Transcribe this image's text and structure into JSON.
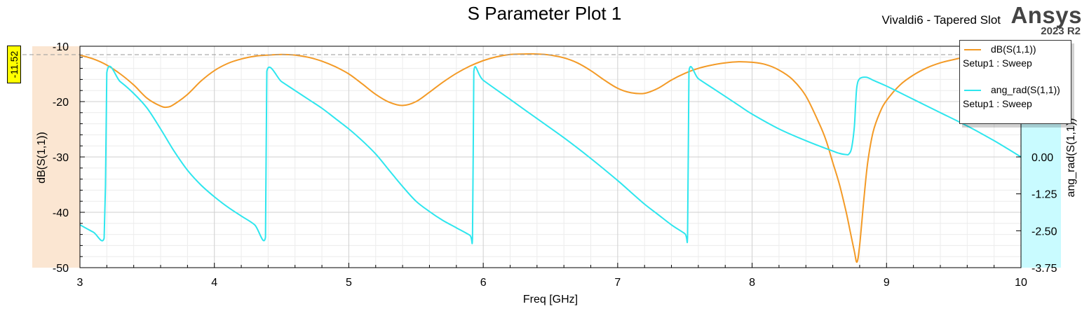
{
  "plot_title": "S Parameter Plot 1",
  "project_name": "Vivaldi6 - Tapered Slot",
  "brand": {
    "name": "Ansys",
    "version": "2023 R2"
  },
  "marker": {
    "value_label": "-11.52",
    "value": -11.52
  },
  "colors": {
    "dB_trace": "#f39a26",
    "phase_trace": "#2ee6ee",
    "left_axis_band": "#fbe6d2",
    "right_axis_band": "#c9fbff",
    "marker_line": "#999999",
    "grid_major": "#cfcfcf",
    "grid_minor": "#ececec"
  },
  "legend": {
    "entries": [
      {
        "name": "dB(S(1,1))",
        "setup": "Setup1 : Sweep",
        "color": "#f39a26"
      },
      {
        "name": "ang_rad(S(1,1))",
        "setup": "Setup1 : Sweep",
        "color": "#2ee6ee"
      }
    ]
  },
  "chart_data": {
    "type": "line",
    "xlabel": "Freq [GHz]",
    "ylabel_left": "dB(S(1,1))",
    "ylabel_right": "ang_rad(S(1,1))",
    "xlim": [
      3,
      10
    ],
    "ylim_left": [
      -50,
      -10
    ],
    "ylim_right": [
      -3.75,
      3.75
    ],
    "x_ticks": [
      "3",
      "4",
      "5",
      "6",
      "7",
      "8",
      "9",
      "10"
    ],
    "y_left_ticks": [
      "-10",
      "-20",
      "-30",
      "-40",
      "-50"
    ],
    "y_right_ticks": [
      "0.00",
      "-1.25",
      "-2.50",
      "-3.75"
    ],
    "grid": true,
    "legend_position": "top-right",
    "series": [
      {
        "name": "dB(S(1,1))",
        "axis": "left",
        "x": [
          3.0,
          3.1,
          3.2,
          3.3,
          3.4,
          3.5,
          3.6,
          3.65,
          3.7,
          3.8,
          3.9,
          4.0,
          4.1,
          4.2,
          4.3,
          4.4,
          4.5,
          4.6,
          4.7,
          4.8,
          4.9,
          5.0,
          5.1,
          5.2,
          5.3,
          5.4,
          5.5,
          5.6,
          5.7,
          5.8,
          5.9,
          6.0,
          6.1,
          6.2,
          6.3,
          6.4,
          6.5,
          6.6,
          6.7,
          6.8,
          6.9,
          7.0,
          7.1,
          7.2,
          7.3,
          7.4,
          7.5,
          7.6,
          7.7,
          7.8,
          7.9,
          8.0,
          8.1,
          8.2,
          8.3,
          8.4,
          8.5,
          8.55,
          8.6,
          8.65,
          8.7,
          8.73,
          8.76,
          8.78,
          8.8,
          8.83,
          8.86,
          8.9,
          8.95,
          9.0,
          9.1,
          9.2,
          9.3,
          9.4,
          9.5,
          9.6,
          9.7,
          9.8,
          9.9,
          10.0
        ],
        "values": [
          -11.6,
          -12.3,
          -13.4,
          -15.0,
          -17.0,
          -19.4,
          -20.8,
          -21.0,
          -20.5,
          -18.7,
          -16.3,
          -14.4,
          -13.1,
          -12.3,
          -11.8,
          -11.6,
          -11.5,
          -11.6,
          -12.0,
          -12.7,
          -13.7,
          -15.0,
          -16.8,
          -18.7,
          -20.1,
          -20.7,
          -20.0,
          -18.3,
          -16.5,
          -14.9,
          -13.6,
          -12.6,
          -11.9,
          -11.5,
          -11.4,
          -11.4,
          -11.6,
          -12.1,
          -13.0,
          -14.4,
          -16.1,
          -17.6,
          -18.4,
          -18.5,
          -17.6,
          -16.1,
          -14.9,
          -14.0,
          -13.4,
          -13.0,
          -12.8,
          -12.9,
          -13.3,
          -14.3,
          -16.0,
          -19.0,
          -24.0,
          -27.0,
          -31.0,
          -35.0,
          -40.0,
          -43.5,
          -47.0,
          -49.0,
          -46.0,
          -38.0,
          -31.0,
          -25.5,
          -22.0,
          -19.8,
          -17.0,
          -15.2,
          -13.9,
          -13.0,
          -12.4,
          -11.9,
          -11.6,
          -11.5,
          -11.5,
          -11.5
        ]
      },
      {
        "name": "ang_rad(S(1,1))",
        "axis": "right",
        "x": [
          3.0,
          3.1,
          3.18,
          3.19,
          3.2,
          3.3,
          3.4,
          3.5,
          3.6,
          3.7,
          3.8,
          3.9,
          4.0,
          4.1,
          4.2,
          4.3,
          4.38,
          4.385,
          4.39,
          4.5,
          4.6,
          4.7,
          4.8,
          4.9,
          5.0,
          5.1,
          5.2,
          5.3,
          5.4,
          5.5,
          5.6,
          5.7,
          5.8,
          5.9,
          5.92,
          5.925,
          5.93,
          6.0,
          6.2,
          6.4,
          6.6,
          6.8,
          7.0,
          7.1,
          7.2,
          7.3,
          7.4,
          7.5,
          7.52,
          7.525,
          7.53,
          7.6,
          7.7,
          7.8,
          7.9,
          8.0,
          8.2,
          8.4,
          8.6,
          8.65,
          8.7,
          8.72,
          8.74,
          8.76,
          8.77,
          8.78,
          8.8,
          8.85,
          8.9,
          9.0,
          9.2,
          9.4,
          9.6,
          9.8,
          10.0
        ],
        "values": [
          -2.3,
          -2.55,
          -2.75,
          -1.0,
          2.85,
          2.55,
          2.15,
          1.65,
          0.95,
          0.2,
          -0.45,
          -0.95,
          -1.35,
          -1.7,
          -2.0,
          -2.3,
          -2.72,
          0.0,
          2.9,
          2.55,
          2.25,
          1.95,
          1.65,
          1.3,
          0.95,
          0.55,
          0.1,
          -0.45,
          -1.0,
          -1.5,
          -1.85,
          -2.15,
          -2.4,
          -2.65,
          -2.75,
          0.0,
          2.9,
          2.6,
          1.95,
          1.3,
          0.65,
          -0.05,
          -0.8,
          -1.2,
          -1.6,
          -1.95,
          -2.3,
          -2.6,
          -2.72,
          0.0,
          2.9,
          2.65,
          2.35,
          2.05,
          1.75,
          1.45,
          0.95,
          0.55,
          0.2,
          0.12,
          0.08,
          0.1,
          0.3,
          1.0,
          1.8,
          2.4,
          2.65,
          2.7,
          2.6,
          2.4,
          1.95,
          1.5,
          1.05,
          0.55,
          0.0
        ]
      }
    ],
    "reference_line": {
      "axis": "left",
      "value": -11.52
    }
  }
}
